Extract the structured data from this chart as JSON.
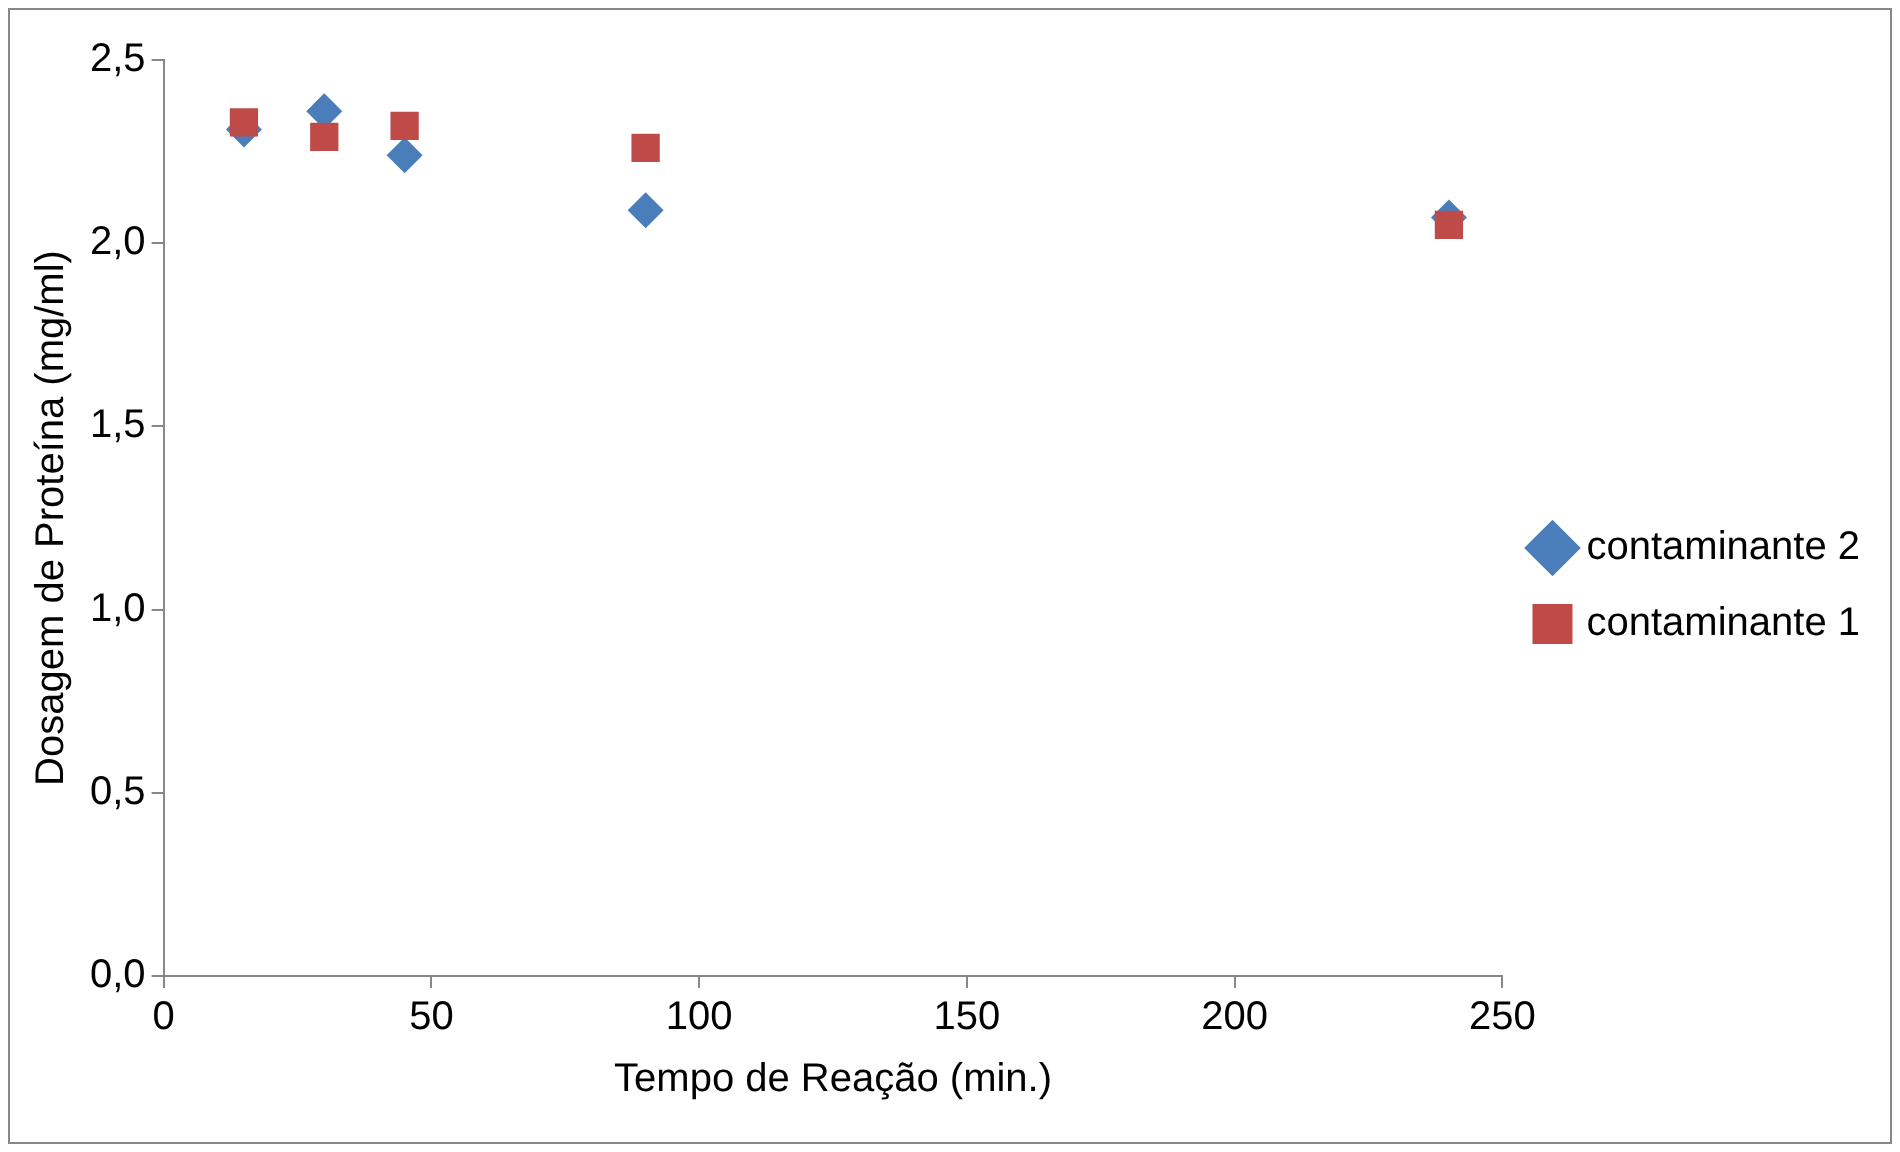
{
  "chart_data": {
    "type": "scatter",
    "xlabel": "Tempo de Reação (min.)",
    "ylabel": "Dosagem de Proteína (mg/ml)",
    "xlim": [
      0,
      250
    ],
    "xticks": [
      0,
      50,
      100,
      150,
      200,
      250
    ],
    "ylim": [
      0,
      2.5
    ],
    "yticks": [
      {
        "value": 0,
        "label": "0,0"
      },
      {
        "value": 0.5,
        "label": "0,5"
      },
      {
        "value": 1,
        "label": "1,0"
      },
      {
        "value": 1.5,
        "label": "1,5"
      },
      {
        "value": 2,
        "label": "2,0"
      },
      {
        "value": 2.5,
        "label": "2,5"
      }
    ],
    "x": [
      15,
      30,
      45,
      90,
      240
    ],
    "series": [
      {
        "name": "contaminante 2",
        "color": "#4a7ebb",
        "marker": "diamond",
        "values": [
          2.31,
          2.36,
          2.24,
          2.09,
          2.07
        ]
      },
      {
        "name": "contaminante 1",
        "color": "#be4b48",
        "marker": "square",
        "values": [
          2.33,
          2.29,
          2.32,
          2.26,
          2.05
        ]
      }
    ],
    "grid": false,
    "legend": "right"
  }
}
